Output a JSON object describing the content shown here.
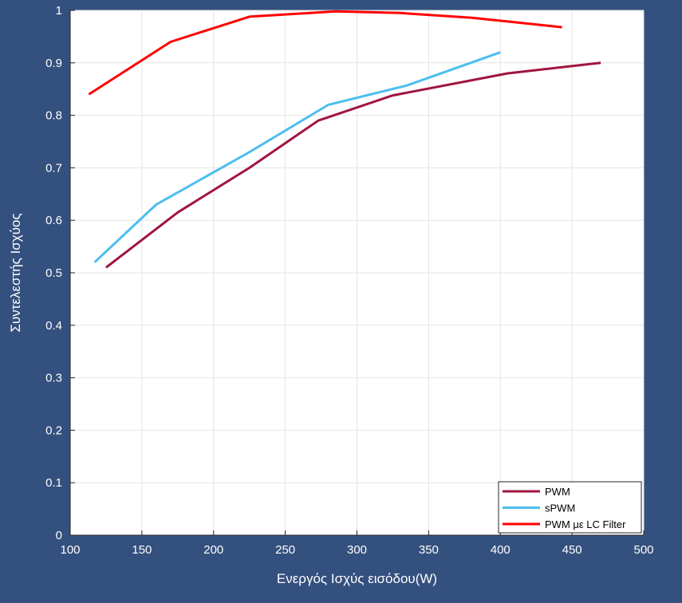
{
  "figure": {
    "background_color": "#34507e",
    "plot_background_color": "#ffffff",
    "text_color": "#ffffff",
    "grid_color": "#e4e4e4"
  },
  "chart_data": {
    "type": "line",
    "title": "",
    "xlabel": "Ενεργός Ισχύς εισόδου(W)",
    "ylabel": "Συντελεστής Ισχύος",
    "xlim": [
      100,
      500
    ],
    "ylim": [
      0,
      1
    ],
    "xticks": [
      100,
      150,
      200,
      250,
      300,
      350,
      400,
      450,
      500
    ],
    "yticks": [
      0,
      0.1,
      0.2,
      0.3,
      0.4,
      0.5,
      0.6,
      0.7,
      0.8,
      0.9,
      1
    ],
    "grid": true,
    "legend_position": "bottom-right",
    "series": [
      {
        "name": "PWM",
        "color": "#a0153e",
        "x": [
          125,
          175,
          225,
          273,
          325,
          405,
          470
        ],
        "y": [
          0.51,
          0.615,
          0.7,
          0.79,
          0.838,
          0.88,
          0.9
        ]
      },
      {
        "name": "sPWM",
        "color": "#4dbeee",
        "x": [
          117,
          160,
          225,
          280,
          335,
          400
        ],
        "y": [
          0.52,
          0.63,
          0.73,
          0.82,
          0.857,
          0.92
        ]
      },
      {
        "name": "PWM με LC Filter",
        "color": "#ff0000",
        "x": [
          113,
          170,
          225,
          285,
          330,
          380,
          443
        ],
        "y": [
          0.84,
          0.94,
          0.988,
          0.998,
          0.995,
          0.986,
          0.968
        ]
      }
    ]
  }
}
